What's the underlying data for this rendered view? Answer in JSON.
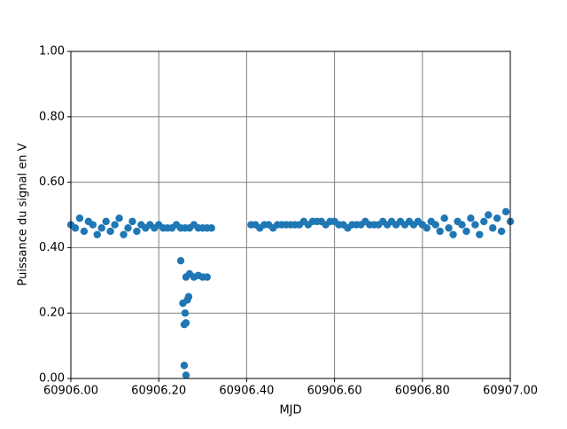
{
  "chart_data": {
    "type": "scatter",
    "x_label": "MJD",
    "y_label": "Puissance du signal en V",
    "color": "#1f77b4",
    "grid": true,
    "xlim": [
      60906.0,
      60907.0
    ],
    "xticks": [
      {
        "value": 60906.0,
        "label": "60906.00"
      },
      {
        "value": 60906.2,
        "label": "60906.20"
      },
      {
        "value": 60906.4,
        "label": "60906.40"
      },
      {
        "value": 60906.6,
        "label": "60906.60"
      },
      {
        "value": 60906.8,
        "label": "60906.80"
      },
      {
        "value": 60907.0,
        "label": "60907.00"
      }
    ],
    "ylim": [
      0,
      1
    ],
    "yticks": [
      {
        "value": 0,
        "label": "0.00"
      },
      {
        "value": 0.2,
        "label": "0.20"
      },
      {
        "value": 0.4,
        "label": "0.40"
      },
      {
        "value": 0.6,
        "label": "0.60"
      },
      {
        "value": 0.8,
        "label": "0.80"
      },
      {
        "value": 1,
        "label": "1.00"
      }
    ],
    "x": [
      60906.0,
      60906.01,
      60906.02,
      60906.03,
      60906.04,
      60906.05,
      60906.06,
      60906.07,
      60906.08,
      60906.09,
      60906.1,
      60906.11,
      60906.12,
      60906.13,
      60906.14,
      60906.15,
      60906.16,
      60906.17,
      60906.18,
      60906.19,
      60906.2,
      60906.21,
      60906.22,
      60906.23,
      60906.24,
      60906.25,
      60906.26,
      60906.27,
      60906.28,
      60906.29,
      60906.3,
      60906.31,
      60906.32,
      60906.25,
      60906.255,
      60906.26,
      60906.258,
      60906.262,
      60906.265,
      60906.268,
      60906.258,
      60906.262,
      60906.262,
      60906.27,
      60906.28,
      60906.29,
      60906.3,
      60906.31,
      60906.41,
      60906.42,
      60906.43,
      60906.44,
      60906.45,
      60906.46,
      60906.47,
      60906.48,
      60906.49,
      60906.5,
      60906.51,
      60906.52,
      60906.53,
      60906.54,
      60906.55,
      60906.56,
      60906.57,
      60906.58,
      60906.59,
      60906.6,
      60906.61,
      60906.62,
      60906.63,
      60906.64,
      60906.65,
      60906.66,
      60906.67,
      60906.68,
      60906.69,
      60906.7,
      60906.71,
      60906.72,
      60906.73,
      60906.74,
      60906.75,
      60906.76,
      60906.77,
      60906.78,
      60906.79,
      60906.8,
      60906.81,
      60906.82,
      60906.83,
      60906.84,
      60906.85,
      60906.86,
      60906.87,
      60906.88,
      60906.89,
      60906.9,
      60906.91,
      60906.92,
      60906.93,
      60906.94,
      60906.95,
      60906.96,
      60906.97,
      60906.98,
      60906.99,
      60907.0
    ],
    "values": [
      0.47,
      0.46,
      0.49,
      0.45,
      0.48,
      0.47,
      0.44,
      0.46,
      0.48,
      0.45,
      0.47,
      0.49,
      0.44,
      0.46,
      0.48,
      0.45,
      0.47,
      0.46,
      0.47,
      0.46,
      0.47,
      0.46,
      0.46,
      0.46,
      0.47,
      0.46,
      0.46,
      0.46,
      0.47,
      0.46,
      0.46,
      0.46,
      0.46,
      0.36,
      0.23,
      0.2,
      0.165,
      0.17,
      0.24,
      0.25,
      0.04,
      0.01,
      0.31,
      0.32,
      0.31,
      0.315,
      0.31,
      0.31,
      0.47,
      0.47,
      0.46,
      0.47,
      0.47,
      0.46,
      0.47,
      0.47,
      0.47,
      0.47,
      0.47,
      0.47,
      0.48,
      0.47,
      0.48,
      0.48,
      0.48,
      0.47,
      0.48,
      0.48,
      0.47,
      0.47,
      0.46,
      0.47,
      0.47,
      0.47,
      0.48,
      0.47,
      0.47,
      0.47,
      0.48,
      0.47,
      0.48,
      0.47,
      0.48,
      0.47,
      0.48,
      0.47,
      0.48,
      0.47,
      0.46,
      0.48,
      0.47,
      0.45,
      0.49,
      0.46,
      0.44,
      0.48,
      0.47,
      0.45,
      0.49,
      0.47,
      0.44,
      0.48,
      0.5,
      0.46,
      0.49,
      0.45,
      0.51,
      0.48
    ]
  }
}
